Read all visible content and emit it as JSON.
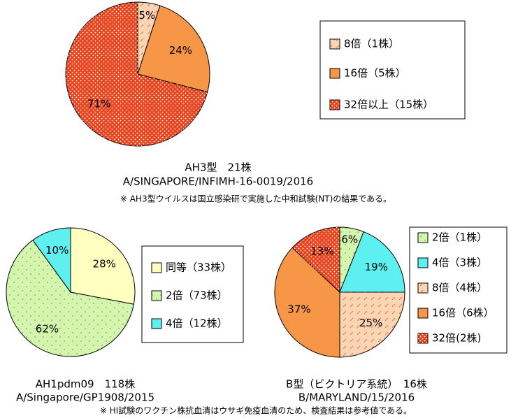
{
  "chart_data": [
    {
      "type": "pie",
      "title": "AH3型　21株",
      "subtitle": "A/SINGAPORE/INFIMH-16-0019/2016",
      "annotation": "※ AH3型ウイルスは国立感染研で実施した中和試験(NT)の結果である。",
      "categories": [
        "8倍（1株）",
        "16倍（5株）",
        "32倍以上（15株）"
      ],
      "values": [
        5,
        24,
        71
      ],
      "value_labels": [
        "5%",
        "24%",
        "71%"
      ],
      "colors": [
        "#fcd5b5",
        "#f79646",
        "#e8451f"
      ],
      "patterns": [
        "hatch",
        "solid",
        "dots"
      ]
    },
    {
      "type": "pie",
      "title": "AH1pdm09　118株",
      "subtitle": "A/Singapore/GP1908/2015",
      "categories": [
        "同等（33株）",
        "2倍（73株）",
        "4倍（12株）"
      ],
      "values": [
        28,
        62,
        10
      ],
      "value_labels": [
        "28%",
        "62%",
        "10%"
      ],
      "colors": [
        "#ffffc0",
        "#d4f5ad",
        "#5ef0f0"
      ],
      "patterns": [
        "solid",
        "dots",
        "solid"
      ]
    },
    {
      "type": "pie",
      "title": "B型（ビクトリア系統）　16株",
      "subtitle": "B/MARYLAND/15/2016",
      "categories": [
        "2倍（1株）",
        "4倍（3株）",
        "8倍（4株）",
        "16倍（6株）",
        "32倍(2株)"
      ],
      "values": [
        6,
        19,
        25,
        37,
        13
      ],
      "value_labels": [
        "6%",
        "19%",
        "25%",
        "37%",
        "13%"
      ],
      "colors": [
        "#d4f5ad",
        "#5ef0f0",
        "#fcd5b5",
        "#f79646",
        "#e8451f"
      ],
      "patterns": [
        "dots",
        "solid",
        "hatch",
        "solid",
        "dots"
      ]
    }
  ],
  "footnote": "※ HI試験のワクチン株抗血清はウサギ免疫血清のため、検査結果は参考値である。"
}
